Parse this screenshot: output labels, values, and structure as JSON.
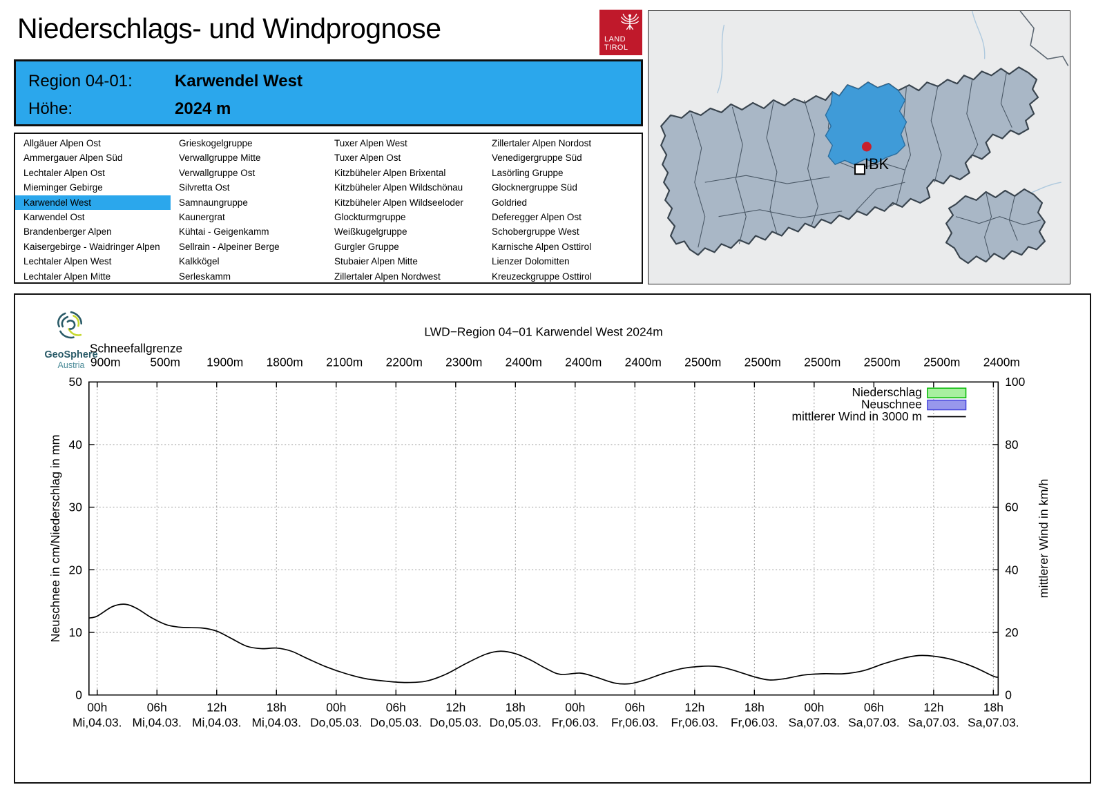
{
  "page": {
    "title": "Niederschlags- und Windprognose"
  },
  "logos": {
    "land_tirol": {
      "line1": "LAND",
      "line2": "TIROL"
    },
    "geosphere": {
      "name": "GeoSphere",
      "country": "Austria"
    }
  },
  "header": {
    "region_label": "Region 04-01:",
    "region_value": "Karwendel West",
    "altitude_label": "Höhe:",
    "altitude_value": "2024 m"
  },
  "region_list": {
    "selected": "Karwendel West",
    "columns": [
      [
        "Allgäuer Alpen Ost",
        "Ammergauer Alpen Süd",
        "Lechtaler Alpen Ost",
        "Mieminger Gebirge",
        "Karwendel West",
        "Karwendel Ost",
        "Brandenberger Alpen",
        "Kaisergebirge - Waidringer Alpen",
        "Lechtaler Alpen West",
        "Lechtaler Alpen Mitte"
      ],
      [
        "Grieskogelgruppe",
        "Verwallgruppe Mitte",
        "Verwallgruppe Ost",
        "Silvretta Ost",
        "Samnaungruppe",
        "Kaunergrat",
        "Kühtai - Geigenkamm",
        "Sellrain - Alpeiner Berge",
        "Kalkkögel",
        "Serleskamm"
      ],
      [
        "Tuxer Alpen West",
        "Tuxer Alpen Ost",
        "Kitzbüheler Alpen Brixental",
        "Kitzbüheler Alpen Wildschönau",
        "Kitzbüheler Alpen Wildseeloder",
        "Glockturmgruppe",
        "Weißkugelgruppe",
        "Gurgler Gruppe",
        "Stubaier Alpen Mitte",
        "Zillertaler Alpen Nordwest"
      ],
      [
        "Zillertaler Alpen Nordost",
        "Venedigergruppe Süd",
        "Lasörling Gruppe",
        "Glocknergruppe Süd",
        "Goldried",
        "Deferegger Alpen Ost",
        "Schobergruppe West",
        "Karnische Alpen Osttirol",
        "Lienzer Dolomitten",
        "Kreuzeckgruppe Osttirol"
      ]
    ]
  },
  "map": {
    "marker_label": "IBK"
  },
  "chart_data": {
    "type": "line",
    "title": "LWD−Region 04−01 Karwendel West 2024m",
    "grid": true,
    "top_axis": {
      "label": "Schneefallgrenze",
      "values": [
        "900m",
        "500m",
        "1900m",
        "1800m",
        "2100m",
        "2200m",
        "2300m",
        "2400m",
        "2400m",
        "2400m",
        "2500m",
        "2500m",
        "2500m",
        "2500m",
        "2500m",
        "2400m"
      ]
    },
    "x_axis": {
      "tick_times": [
        "00h",
        "06h",
        "12h",
        "18h",
        "00h",
        "06h",
        "12h",
        "18h",
        "00h",
        "06h",
        "12h",
        "18h",
        "00h",
        "06h",
        "12h",
        "18h"
      ],
      "tick_dates": [
        "Mi,04.03.",
        "Mi,04.03.",
        "Mi,04.03.",
        "Mi,04.03.",
        "Do,05.03.",
        "Do,05.03.",
        "Do,05.03.",
        "Do,05.03.",
        "Fr,06.03.",
        "Fr,06.03.",
        "Fr,06.03.",
        "Fr,06.03.",
        "Sa,07.03.",
        "Sa,07.03.",
        "Sa,07.03.",
        "Sa,07.03."
      ],
      "tick_hours": [
        0,
        6,
        12,
        18,
        24,
        30,
        36,
        42,
        48,
        54,
        60,
        66,
        72,
        78,
        84,
        90
      ]
    },
    "y_left": {
      "label": "Neuschnee in cm/Niederschlag in mm",
      "min": 0,
      "max": 50,
      "ticks": [
        0,
        10,
        20,
        30,
        40,
        50
      ]
    },
    "y_right": {
      "label": "mittlerer Wind in km/h",
      "min": 0,
      "max": 100,
      "ticks": [
        0,
        20,
        40,
        60,
        80,
        100
      ]
    },
    "legend": [
      {
        "label": "Niederschlag",
        "type": "box",
        "fill": "#A8F0A0",
        "border": "#00B800"
      },
      {
        "label": "Neuschnee",
        "type": "box",
        "fill": "#9898EC",
        "border": "#4444DC"
      },
      {
        "label": "mittlerer Wind in 3000 m",
        "type": "line",
        "color": "#000000"
      }
    ],
    "series": [
      {
        "name": "Niederschlag",
        "unit": "mm",
        "axis": "left",
        "values": [
          0,
          0,
          0,
          0,
          0,
          0,
          0,
          0,
          0,
          0,
          0,
          0,
          0,
          0,
          0,
          0
        ]
      },
      {
        "name": "Neuschnee",
        "unit": "cm",
        "axis": "left",
        "values": [
          0,
          0,
          0,
          0,
          0,
          0,
          0,
          0,
          0,
          0,
          0,
          0,
          0,
          0,
          0,
          0
        ]
      },
      {
        "name": "mittlerer Wind in 3000 m",
        "unit": "km/h",
        "axis": "right",
        "points": [
          [
            -0.8,
            24.6
          ],
          [
            0,
            25.2
          ],
          [
            1.5,
            28.2
          ],
          [
            2.8,
            29
          ],
          [
            4,
            27.6
          ],
          [
            5.5,
            24.6
          ],
          [
            7,
            22.4
          ],
          [
            8.5,
            21.6
          ],
          [
            10.5,
            21.4
          ],
          [
            12,
            20.4
          ],
          [
            13.5,
            18
          ],
          [
            15,
            15.6
          ],
          [
            16.5,
            14.8
          ],
          [
            18,
            15
          ],
          [
            19.5,
            14
          ],
          [
            21,
            11.8
          ],
          [
            23,
            9
          ],
          [
            25,
            6.8
          ],
          [
            27,
            5.2
          ],
          [
            29,
            4.4
          ],
          [
            31,
            4
          ],
          [
            33,
            4.4
          ],
          [
            35,
            6.6
          ],
          [
            37,
            10
          ],
          [
            39,
            13
          ],
          [
            40.5,
            14
          ],
          [
            42,
            13.2
          ],
          [
            43.5,
            11.2
          ],
          [
            45,
            8.6
          ],
          [
            46.5,
            6.6
          ],
          [
            48.5,
            7
          ],
          [
            50,
            5.8
          ],
          [
            52,
            3.8
          ],
          [
            53.5,
            3.6
          ],
          [
            55,
            4.8
          ],
          [
            57,
            7
          ],
          [
            59,
            8.6
          ],
          [
            61,
            9.2
          ],
          [
            62.5,
            9
          ],
          [
            64,
            7.8
          ],
          [
            66,
            5.8
          ],
          [
            67.5,
            4.8
          ],
          [
            69,
            5.2
          ],
          [
            71,
            6.4
          ],
          [
            73,
            6.8
          ],
          [
            75,
            6.8
          ],
          [
            77,
            7.8
          ],
          [
            79,
            10
          ],
          [
            81,
            11.8
          ],
          [
            82.5,
            12.6
          ],
          [
            84,
            12.4
          ],
          [
            86,
            11.2
          ],
          [
            88,
            9
          ],
          [
            90,
            6
          ],
          [
            90.5,
            5.7
          ]
        ]
      }
    ]
  },
  "colors": {
    "header_blue": "#2BA7EC",
    "selected_row_blue": "#2BA7EC",
    "land_tirol_red": "#C0192B",
    "map_background": "#EAEBEC",
    "map_region_fill": "#A9B7C6",
    "map_region_border": "#39444E",
    "map_region_highlight": "#3F9BD8",
    "legend_niederschlag_fill": "#A8F0A0",
    "legend_niederschlag_border": "#00B800",
    "legend_neuschnee_fill": "#9898EC",
    "legend_neuschnee_border": "#4444DC",
    "wind_line": "#000000",
    "geosphere_teal": "#2A5B68",
    "geosphere_lime": "#C6D82F"
  }
}
